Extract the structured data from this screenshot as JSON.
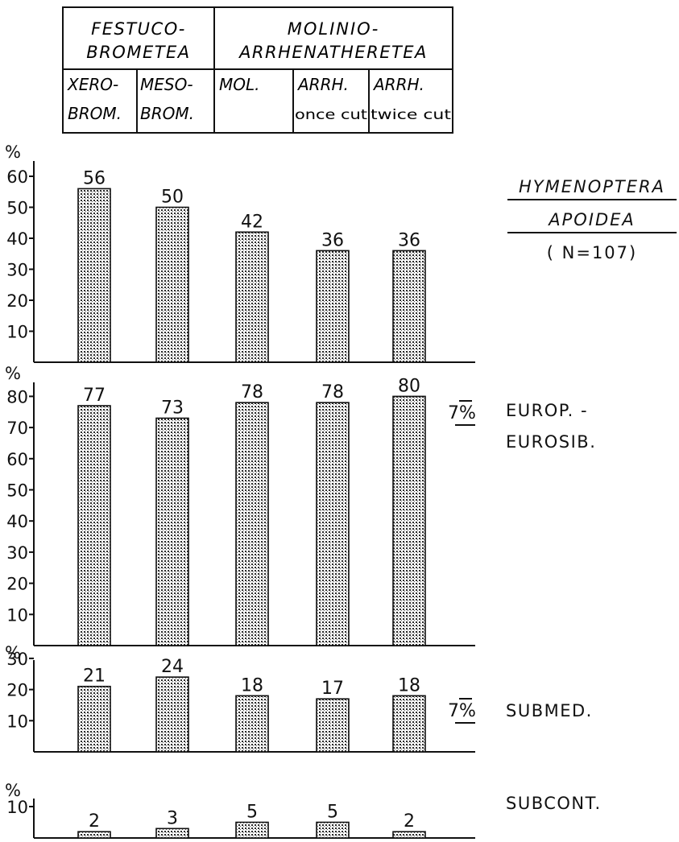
{
  "header_table": {
    "groups": [
      {
        "line1": "FESTUCO-",
        "line2": "BROMETEA"
      },
      {
        "line1": "MOLINIO-",
        "line2": "ARRHENATHERETEA"
      }
    ],
    "columns": [
      {
        "line1": "XERO-",
        "line2": "BROM."
      },
      {
        "line1": "MESO-",
        "line2": "BROM."
      },
      {
        "line1": "MOL.",
        "line2": ""
      },
      {
        "line1": "ARRH.",
        "line2": "once cut"
      },
      {
        "line1": "ARRH.",
        "line2": "twice cut"
      }
    ]
  },
  "chart_data": [
    {
      "type": "bar",
      "categories": [
        "XERO-BROM.",
        "MESO-BROM.",
        "MOL.",
        "ARRH. once cut",
        "ARRH. twice cut"
      ],
      "values": [
        56,
        50,
        42,
        36,
        36
      ],
      "ylabel": "%",
      "ylim": [
        0,
        70
      ],
      "yticks": [
        10,
        20,
        30,
        40,
        50,
        60
      ],
      "label_lines": [
        "HYMENOPTERA",
        "APOIDEA",
        "( N=107)"
      ],
      "marker": ""
    },
    {
      "type": "bar",
      "categories": [
        "XERO-BROM.",
        "MESO-BROM.",
        "MOL.",
        "ARRH. once cut",
        "ARRH. twice cut"
      ],
      "values": [
        77,
        73,
        78,
        78,
        80
      ],
      "ylabel": "%",
      "ylim": [
        0,
        83
      ],
      "yticks": [
        10,
        20,
        30,
        40,
        50,
        60,
        70,
        80
      ],
      "label_lines": [
        "EUROP. -",
        "EUROSIB."
      ],
      "marker": "7%"
    },
    {
      "type": "bar",
      "categories": [
        "XERO-BROM.",
        "MESO-BROM.",
        "MOL.",
        "ARRH. once cut",
        "ARRH. twice cut"
      ],
      "values": [
        21,
        24,
        18,
        17,
        18
      ],
      "ylabel": "%",
      "ylim": [
        0,
        32
      ],
      "yticks": [
        10,
        20,
        30
      ],
      "label_lines": [
        "SUBMED."
      ],
      "marker": "7%"
    },
    {
      "type": "bar",
      "categories": [
        "XERO-BROM.",
        "MESO-BROM.",
        "MOL.",
        "ARRH. once cut",
        "ARRH. twice cut"
      ],
      "values": [
        2,
        3,
        5,
        5,
        2
      ],
      "ylabel": "%",
      "ylim": [
        0,
        12
      ],
      "yticks": [
        10
      ],
      "label_lines": [
        "SUBCONT."
      ],
      "marker": ""
    }
  ],
  "colors": {
    "ink": "#111111",
    "bar_fill": "#9a9a9a"
  }
}
